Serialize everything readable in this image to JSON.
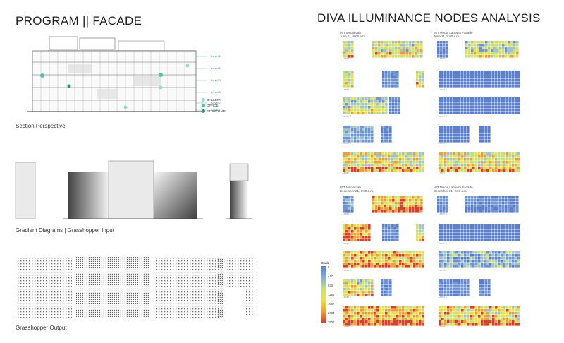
{
  "left_title": "PROGRAM   ||   FACADE",
  "right_title": "DIVA ILLUMINANCE NODES ANALYSIS",
  "captions": {
    "section": "Section Perspective",
    "gradient": "Gradient Diagrams  |  Grasshopper Input",
    "output": "Grasshopper Output"
  },
  "section": {
    "levels": [
      "Level 6",
      "Level 5",
      "Level 4",
      "Level 3",
      "Level 2",
      "Level 1"
    ],
    "legend": [
      {
        "label": "GALLERY",
        "color": "#8fe0c8"
      },
      {
        "label": "OFFICE",
        "color": "#4cc6a8"
      },
      {
        "label": "STUDIO LAB",
        "color": "#1c9a7e"
      }
    ]
  },
  "analysis": {
    "june_left": {
      "title": "MIT Media Lab",
      "sub": "June 21, 9:00 a.m."
    },
    "june_right": {
      "title": "MIT Media Lab with Facade",
      "sub": "June 21, 9:00 a.m."
    },
    "dec_left": {
      "title": "MIT Media Lab",
      "sub": "December 21, 9:00 a.m."
    },
    "dec_right": {
      "title": "MIT Media Lab with Facade",
      "sub": "December 21, 9:00 a.m."
    },
    "level_labels": [
      "Level 5",
      "Level 4",
      "Level 3",
      "Level 2",
      "Level 1"
    ],
    "scale": {
      "title": "Scale",
      "ticks": [
        "0",
        "417",
        "833",
        "1250",
        "1667",
        "2083",
        "2500"
      ]
    }
  },
  "colors": {
    "teal": "#2a9d8f",
    "blue": "#5b7fd0",
    "yellow": "#e8e24a",
    "red": "#e23b2a"
  }
}
